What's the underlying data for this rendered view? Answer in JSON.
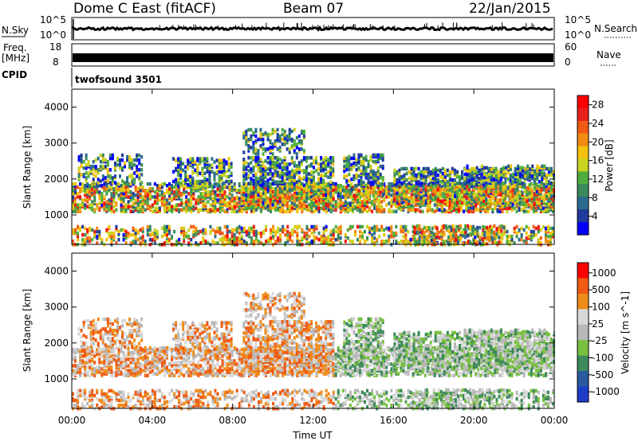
{
  "header": {
    "station": "Dome C East (fitACF)",
    "beam": "Beam 07",
    "date": "22/Jan/2015"
  },
  "side_labels": {
    "nsky": "N.Sky",
    "nsearch": "N.Search",
    "freq": "Freq.",
    "freq_unit": "[MHz]",
    "nave": "Nave",
    "cpid": "CPID",
    "cpid_value": "twofsound 3501"
  },
  "noise_ticks": {
    "left_top": "10^5",
    "left_bottom": "10^0",
    "right_top": "10^5",
    "right_bottom": "10^0"
  },
  "freq_ticks": {
    "left_top": "18",
    "left_bottom": "8",
    "right_top": "60",
    "right_bottom": "0"
  },
  "colors": {
    "power_scale": [
      "#0000ff",
      "#1f3a9a",
      "#2b6a8f",
      "#3a8a5e",
      "#4fae3e",
      "#c8d420",
      "#f2c20e",
      "#f28c12",
      "#f25a14",
      "#e8201a",
      "#ff0000"
    ],
    "velocity_scale": [
      "#ff0000",
      "#f05a14",
      "#f08c1a",
      "#d8d8d8",
      "#b8b8b8",
      "#78c040",
      "#3c8a5a",
      "#2a5aa0",
      "#1e3cc8"
    ]
  },
  "chart_data": [
    {
      "type": "heatmap",
      "name": "Power",
      "ylabel": "Slant Range [km]",
      "yticks": [
        "1000",
        "2000",
        "3000",
        "4000"
      ],
      "ylim": [
        180,
        4500
      ],
      "xticks": [
        "00:00",
        "04:00",
        "08:00",
        "12:00",
        "16:00",
        "20:00",
        "00:00"
      ],
      "colorbar": {
        "label": "Power [dB]",
        "ticks": [
          "4",
          "8",
          "12",
          "16",
          "20",
          "24",
          "28"
        ],
        "range": [
          0,
          30
        ]
      }
    },
    {
      "type": "heatmap",
      "name": "Velocity",
      "ylabel": "Slant Range [km]",
      "yticks": [
        "1000",
        "2000",
        "3000",
        "4000"
      ],
      "ylim": [
        180,
        4500
      ],
      "xticks": [
        "00:00",
        "04:00",
        "08:00",
        "12:00",
        "16:00",
        "20:00",
        "00:00"
      ],
      "xlabel": "Time UT",
      "colorbar": {
        "label": "Velocity [m s^-1]",
        "ticks": [
          "1000",
          "500",
          "100",
          "25",
          "-25",
          "-100",
          "-500",
          "-1000"
        ]
      }
    }
  ]
}
